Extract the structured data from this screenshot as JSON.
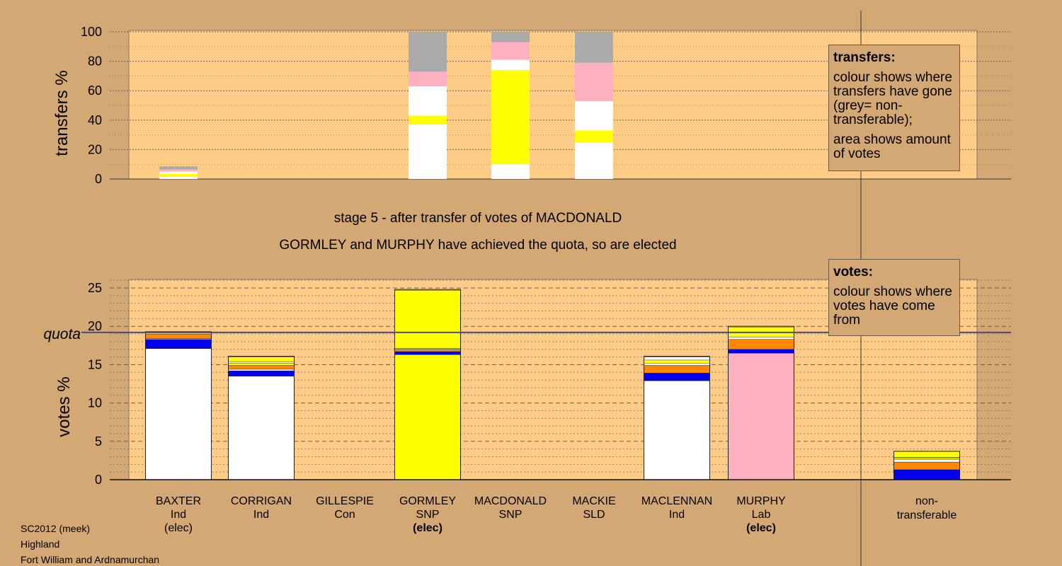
{
  "stage": {
    "line1": "stage 5 - after transfer of votes of MACDONALD",
    "line2": "GORMLEY and MURPHY have achieved the quota, so are elected"
  },
  "legend_transfers": {
    "title": "transfers:",
    "para1": "colour shows where transfers have gone (grey= non-transferable);",
    "para2": "area shows amount of votes"
  },
  "legend_votes": {
    "title": "votes:",
    "para1": "colour shows where votes have come from"
  },
  "footer": {
    "line1": "SC2012 (meek)",
    "line2": "Highland",
    "line3": "Fort William and Ardnamurchan"
  },
  "colors": {
    "background": "#d4a874",
    "plot_area": "#ffcc88",
    "ind": "#ffffff",
    "snp": "#ffff00",
    "lab": "#ffb0c0",
    "con": "#0000ee",
    "sld": "#ff8800",
    "nontransferable": "#aaaaaa",
    "quota_line": "#4a4a78"
  },
  "chart_data": [
    {
      "type": "bar",
      "ylabel": "transfers %",
      "yticks": [
        "0",
        "20",
        "40",
        "60",
        "80",
        "100"
      ],
      "ylim": [
        0,
        100
      ],
      "grid": true,
      "stacked": true,
      "categories": [
        "BAXTER",
        "CORRIGAN",
        "GILLESPIE",
        "GORMLEY",
        "MACDONALD",
        "MACKIE",
        "MACLENNAN",
        "MURPHY"
      ],
      "bars": [
        {
          "candidate": "BAXTER",
          "segments": [
            [
              "ind",
              1.5
            ],
            [
              "snp",
              2
            ],
            [
              "ind",
              1.5
            ],
            [
              "lab",
              1.5
            ],
            [
              "nontransferable",
              2
            ]
          ]
        },
        {
          "candidate": "CORRIGAN",
          "segments": []
        },
        {
          "candidate": "GILLESPIE",
          "segments": []
        },
        {
          "candidate": "GORMLEY",
          "segments": [
            [
              "ind",
              37
            ],
            [
              "snp",
              6
            ],
            [
              "ind",
              20
            ],
            [
              "lab",
              10
            ],
            [
              "nontransferable",
              27
            ]
          ]
        },
        {
          "candidate": "MACDONALD",
          "segments": [
            [
              "ind",
              10
            ],
            [
              "snp",
              64
            ],
            [
              "ind",
              7
            ],
            [
              "lab",
              12
            ],
            [
              "nontransferable",
              7
            ]
          ]
        },
        {
          "candidate": "MACKIE",
          "segments": [
            [
              "ind",
              25
            ],
            [
              "snp",
              8
            ],
            [
              "ind",
              20
            ],
            [
              "lab",
              26
            ],
            [
              "nontransferable",
              21
            ]
          ]
        },
        {
          "candidate": "MACLENNAN",
          "segments": []
        },
        {
          "candidate": "MURPHY",
          "segments": []
        }
      ],
      "legend_position": "right"
    },
    {
      "type": "bar",
      "ylabel": "votes %",
      "yticks": [
        "0",
        "5",
        "10",
        "15",
        "20",
        "25"
      ],
      "ylim": [
        0,
        25
      ],
      "quota": 19.2,
      "quota_label": "quota",
      "grid": true,
      "stacked": true,
      "categories": [
        "BAXTER",
        "CORRIGAN",
        "GILLESPIE",
        "GORMLEY",
        "MACDONALD",
        "MACKIE",
        "MACLENNAN",
        "MURPHY",
        "non-transferable"
      ],
      "candidates": [
        {
          "name": "BAXTER",
          "party": "Ind",
          "note": "(elec)",
          "note_bold": false
        },
        {
          "name": "CORRIGAN",
          "party": "Ind",
          "note": "",
          "note_bold": false
        },
        {
          "name": "GILLESPIE",
          "party": "Con",
          "note": "",
          "note_bold": false
        },
        {
          "name": "GORMLEY",
          "party": "SNP",
          "note": "(elec)",
          "note_bold": true
        },
        {
          "name": "MACDONALD",
          "party": "SNP",
          "note": "",
          "note_bold": false
        },
        {
          "name": "MACKIE",
          "party": "SLD",
          "note": "",
          "note_bold": false
        },
        {
          "name": "MACLENNAN",
          "party": "Ind",
          "note": "",
          "note_bold": false
        },
        {
          "name": "MURPHY",
          "party": "Lab",
          "note": "(elec)",
          "note_bold": true
        }
      ],
      "nontransferable_label": [
        "non-",
        "transferable"
      ],
      "bars": [
        {
          "candidate": "BAXTER",
          "segments": [
            [
              "ind",
              17.1
            ],
            [
              "con",
              1.2
            ],
            [
              "ind",
              0.1
            ],
            [
              "sld",
              0.6
            ],
            [
              "snp",
              0.2
            ],
            [
              "lab",
              0.1
            ]
          ]
        },
        {
          "candidate": "CORRIGAN",
          "segments": [
            [
              "ind",
              13.5
            ],
            [
              "con",
              0.7
            ],
            [
              "ind",
              0.2
            ],
            [
              "sld",
              0.5
            ],
            [
              "snp",
              0.3
            ],
            [
              "ind",
              0.2
            ],
            [
              "snp",
              0.6
            ],
            [
              "lab",
              0.1
            ]
          ]
        },
        {
          "candidate": "GILLESPIE",
          "segments": []
        },
        {
          "candidate": "GORMLEY",
          "segments": [
            [
              "snp",
              16.3
            ],
            [
              "con",
              0.4
            ],
            [
              "sld",
              0.2
            ],
            [
              "ind",
              0.1
            ],
            [
              "lab",
              0.1
            ],
            [
              "snp",
              7.6
            ],
            [
              "lab",
              0.1
            ]
          ]
        },
        {
          "candidate": "MACDONALD",
          "segments": []
        },
        {
          "candidate": "MACKIE",
          "segments": []
        },
        {
          "candidate": "MACLENNAN",
          "segments": [
            [
              "ind",
              12.9
            ],
            [
              "con",
              1.0
            ],
            [
              "sld",
              1.0
            ],
            [
              "ind",
              0.3
            ],
            [
              "snp",
              0.4
            ],
            [
              "ind",
              0.4
            ],
            [
              "lab",
              0.1
            ]
          ]
        },
        {
          "candidate": "MURPHY",
          "segments": [
            [
              "lab",
              16.5
            ],
            [
              "con",
              0.5
            ],
            [
              "sld",
              1.3
            ],
            [
              "ind",
              0.3
            ],
            [
              "snp",
              1.3
            ],
            [
              "lab",
              0.1
            ]
          ]
        },
        {
          "candidate": "non-transferable",
          "segments": [
            [
              "con",
              1.3
            ],
            [
              "sld",
              1.0
            ],
            [
              "ind",
              0.3
            ],
            [
              "snp",
              0.2
            ],
            [
              "ind",
              0.1
            ],
            [
              "snp",
              0.8
            ]
          ]
        }
      ]
    }
  ]
}
